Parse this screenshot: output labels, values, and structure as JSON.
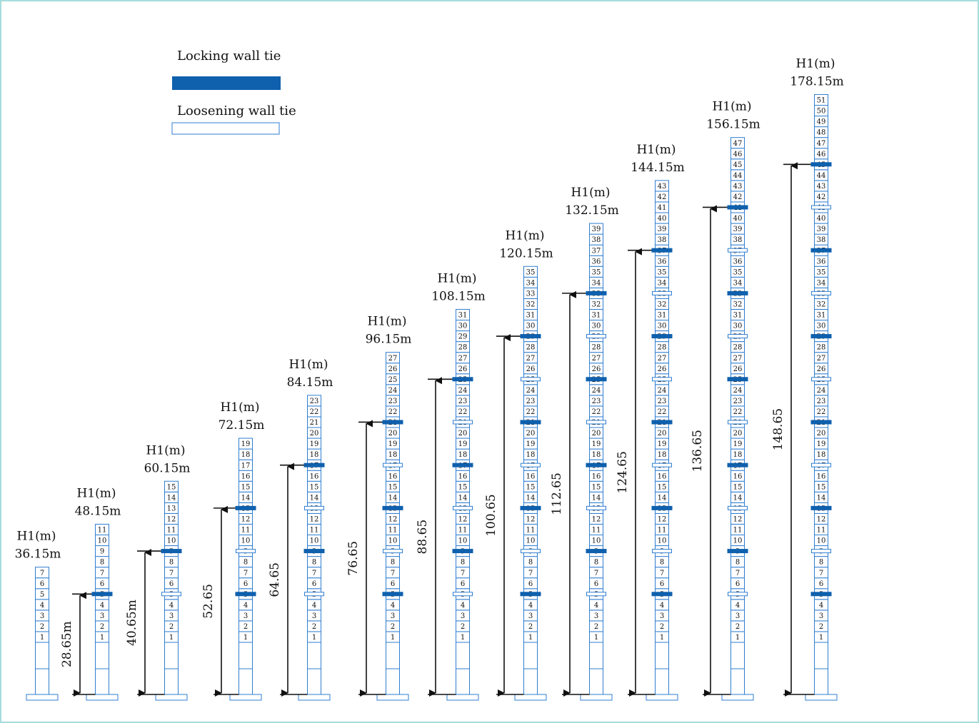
{
  "legend": {
    "locking_label": "Locking wall tie",
    "loosening_label": "Loosening wall tie",
    "colors": {
      "locking": "#0f60ad",
      "loosening": "#ffffff",
      "outline": "#2f7ed0"
    }
  },
  "towers": [
    {
      "segments": 7,
      "height_label": "H1(m)",
      "height_value": "36.15m",
      "locking": [],
      "loosening": [],
      "dim_label": ""
    },
    {
      "segments": 11,
      "height_label": "H1(m)",
      "height_value": "48.15m",
      "locking": [
        5
      ],
      "loosening": [],
      "dim_label": "28.65m"
    },
    {
      "segments": 15,
      "height_label": "H1(m)",
      "height_value": "60.15m",
      "locking": [
        9
      ],
      "loosening": [
        5
      ],
      "dim_label": "40.65m"
    },
    {
      "segments": 19,
      "height_label": "H1(m)",
      "height_value": "72.15m",
      "locking": [
        5,
        13
      ],
      "loosening": [
        9
      ],
      "dim_label": "52.65"
    },
    {
      "segments": 23,
      "height_label": "H1(m)",
      "height_value": "84.15m",
      "locking": [
        9,
        17
      ],
      "loosening": [
        5,
        13
      ],
      "dim_label": "64.65"
    },
    {
      "segments": 27,
      "height_label": "H1(m)",
      "height_value": "96.15m",
      "locking": [
        5,
        13,
        21
      ],
      "loosening": [
        9,
        17
      ],
      "dim_label": "76.65"
    },
    {
      "segments": 31,
      "height_label": "H1(m)",
      "height_value": "108.15m",
      "locking": [
        9,
        17,
        25
      ],
      "loosening": [
        5,
        13,
        21
      ],
      "dim_label": "88.65"
    },
    {
      "segments": 35,
      "height_label": "H1(m)",
      "height_value": "120.15m",
      "locking": [
        5,
        13,
        21,
        29
      ],
      "loosening": [
        9,
        17,
        25
      ],
      "dim_label": "100.65"
    },
    {
      "segments": 39,
      "height_label": "H1(m)",
      "height_value": "132.15m",
      "locking": [
        9,
        17,
        25,
        33
      ],
      "loosening": [
        5,
        13,
        21,
        29
      ],
      "dim_label": "112.65"
    },
    {
      "segments": 43,
      "height_label": "H1(m)",
      "height_value": "144.15m",
      "locking": [
        5,
        13,
        21,
        29,
        37
      ],
      "loosening": [
        9,
        17,
        25,
        33
      ],
      "dim_label": "124.65"
    },
    {
      "segments": 47,
      "height_label": "H1(m)",
      "height_value": "156.15m",
      "locking": [
        9,
        17,
        25,
        33,
        41
      ],
      "loosening": [
        5,
        13,
        21,
        29,
        37
      ],
      "dim_label": "136.65"
    },
    {
      "segments": 51,
      "height_label": "H1(m)",
      "height_value": "178.15m",
      "locking": [
        5,
        13,
        21,
        29,
        37,
        45
      ],
      "loosening": [
        9,
        17,
        25,
        33,
        41
      ],
      "dim_label": "148.65"
    }
  ]
}
